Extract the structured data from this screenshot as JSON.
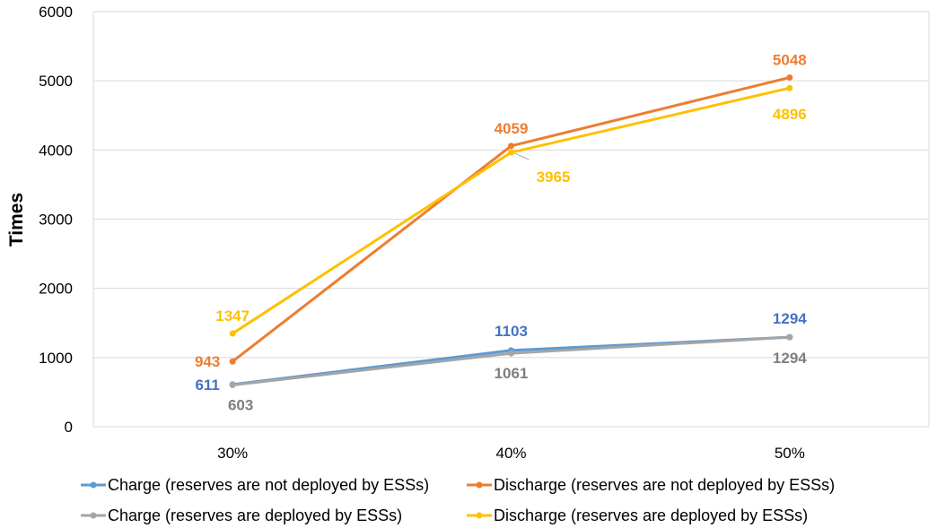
{
  "chart_data": {
    "type": "line",
    "title": "",
    "xlabel": "",
    "ylabel": "Times",
    "categories": [
      "30%",
      "40%",
      "50%"
    ],
    "ylim": [
      0,
      6000
    ],
    "yticks": [
      "0",
      "1000",
      "2000",
      "3000",
      "4000",
      "5000",
      "6000"
    ],
    "grid": true,
    "legend_position": "bottom",
    "series": [
      {
        "name": "Charge (reserves are not deployed by ESSs)",
        "values": [
          611,
          1103,
          1294
        ],
        "labels": [
          "611",
          "1103",
          "1294"
        ],
        "color": "#5B9BD5",
        "label_color": "#4472C4"
      },
      {
        "name": "Discharge (reserves are not deployed by ESSs)",
        "values": [
          943,
          4059,
          5048
        ],
        "labels": [
          "943",
          "4059",
          "5048"
        ],
        "color": "#ED7D31",
        "label_color": "#ED7D31"
      },
      {
        "name": "Charge (reserves are deployed by ESSs)",
        "values": [
          603,
          1061,
          1294
        ],
        "labels": [
          "603",
          "1061",
          "1294"
        ],
        "color": "#A5A5A5",
        "label_color": "#7F7F7F"
      },
      {
        "name": "Discharge (reserves are deployed by ESSs)",
        "values": [
          1347,
          3965,
          4896
        ],
        "labels": [
          "1347",
          "3965",
          "4896"
        ],
        "color": "#FFC000",
        "label_color": "#FFC000"
      }
    ]
  }
}
